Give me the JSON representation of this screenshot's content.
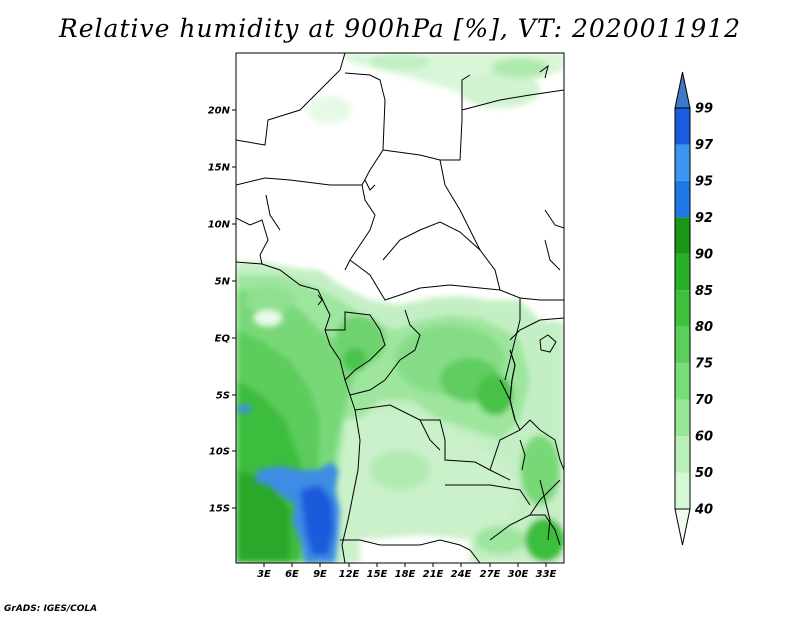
{
  "title": "Relative humidity at 900hPa [%], VT: 2020011912",
  "credit": "GrADS: IGES/COLA",
  "map": {
    "lat_labels": [
      "20N",
      "15N",
      "10N",
      "5N",
      "EQ",
      "5S",
      "10S",
      "15S"
    ],
    "lon_labels": [
      "3E",
      "6E",
      "9E",
      "12E",
      "15E",
      "18E",
      "21E",
      "24E",
      "27E",
      "30E",
      "33E"
    ],
    "lon_range": [
      0,
      35
    ],
    "lat_range": [
      -20,
      24.5
    ]
  },
  "colorbar": {
    "labels": [
      "40",
      "50",
      "60",
      "70",
      "75",
      "80",
      "85",
      "90",
      "92",
      "95",
      "97",
      "99"
    ],
    "colors": [
      "#f0fcf0",
      "#d4f7d4",
      "#b8f0b8",
      "#96e896",
      "#78dc78",
      "#5ad05a",
      "#3ec23e",
      "#28b028",
      "#1a961a",
      "#1e78e6",
      "#3c96f0",
      "#1e5adc",
      "#3c78c8"
    ]
  }
}
